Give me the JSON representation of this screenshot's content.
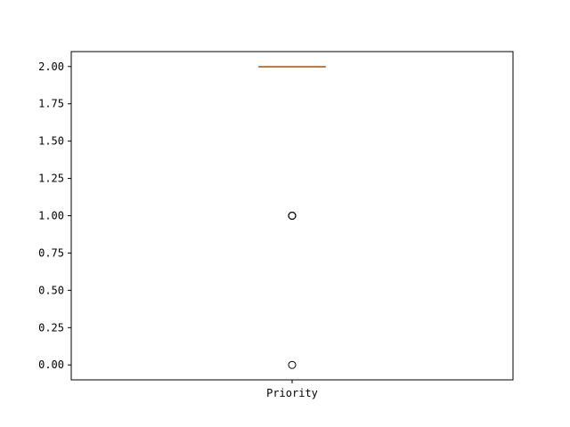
{
  "chart_data": {
    "type": "box",
    "categories": [
      "Priority"
    ],
    "series": [
      {
        "category": "Priority",
        "q1": 2.0,
        "median": 2.0,
        "q3": 2.0,
        "whisker_low": 2.0,
        "whisker_high": 2.0,
        "outliers": [
          1.0,
          1.0,
          1.0,
          1.0,
          0.0
        ]
      }
    ],
    "y_ticks": [
      "0.00",
      "0.25",
      "0.50",
      "0.75",
      "1.00",
      "1.25",
      "1.50",
      "1.75",
      "2.00"
    ],
    "ylim": [
      -0.1,
      2.1
    ],
    "title": "",
    "xlabel": "",
    "ylabel": "",
    "grid": false,
    "colors": {
      "median": "#e07b2a",
      "box": "#000000",
      "outlier": "#000000"
    }
  }
}
